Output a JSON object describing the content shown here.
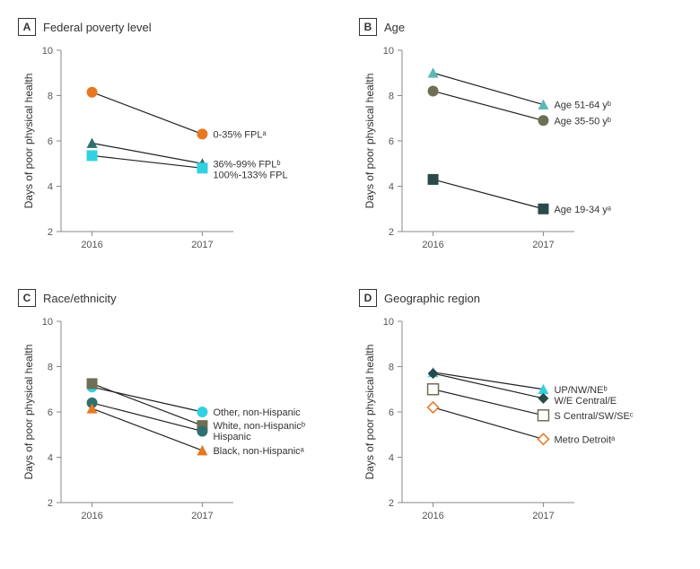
{
  "global": {
    "ylabel": "Days of poor physical health",
    "ylim": [
      2,
      10
    ],
    "yticks": [
      2,
      4,
      6,
      8,
      10
    ],
    "xcats": [
      "2016",
      "2017"
    ],
    "axis_color": "#888888",
    "label_color": "#333333",
    "tick_fontsize": 11,
    "title_fontsize": 13,
    "ylabel_fontsize": 12,
    "line_color": "#222222",
    "line_width": 1.2,
    "marker_size": 6,
    "background_color": "#ffffff"
  },
  "panels": [
    {
      "letter": "A",
      "title": "Federal poverty level",
      "series": [
        {
          "label": "0-35% FPLᵃ",
          "values": [
            8.15,
            6.3
          ],
          "color": "#e87722",
          "marker": "circle",
          "fill": true
        },
        {
          "label": "36%-99% FPLᵇ",
          "values": [
            5.9,
            5.0
          ],
          "color": "#2f6f6f",
          "marker": "triangle",
          "fill": true
        },
        {
          "label": "100%-133% FPL",
          "values": [
            5.35,
            4.8
          ],
          "color": "#33d1e0",
          "marker": "square",
          "fill": true
        }
      ]
    },
    {
      "letter": "B",
      "title": "Age",
      "series": [
        {
          "label": "Age 51-64 yᵇ",
          "values": [
            9.0,
            7.6
          ],
          "color": "#5cb8b8",
          "marker": "triangle",
          "fill": true
        },
        {
          "label": "Age 35-50 yᵇ",
          "values": [
            8.2,
            6.9
          ],
          "color": "#6f6f55",
          "marker": "circle",
          "fill": true
        },
        {
          "label": "Age 19-34 yᵃ",
          "values": [
            4.3,
            3.0
          ],
          "color": "#2a4a4a",
          "marker": "square",
          "fill": true
        }
      ]
    },
    {
      "letter": "C",
      "title": "Race/ethnicity",
      "series": [
        {
          "label": "Other, non-Hispanic",
          "values": [
            7.1,
            6.0
          ],
          "color": "#33d1e0",
          "marker": "circle",
          "fill": true
        },
        {
          "label": "White, non-Hispanicᵇ",
          "values": [
            7.25,
            5.4
          ],
          "color": "#6f6f55",
          "marker": "square",
          "fill": true
        },
        {
          "label": "Hispanic",
          "values": [
            6.4,
            5.15
          ],
          "color": "#2f6f6f",
          "marker": "circle",
          "fill": true
        },
        {
          "label": "Black, non-Hispanicᵃ",
          "values": [
            6.15,
            4.3
          ],
          "color": "#e87722",
          "marker": "triangle",
          "fill": true
        }
      ]
    },
    {
      "letter": "D",
      "title": "Geographic region",
      "series": [
        {
          "label": "UP/NW/NEᵇ",
          "values": [
            7.75,
            7.0
          ],
          "color": "#33d1e0",
          "marker": "triangle",
          "fill": true
        },
        {
          "label": "W/E Central/E",
          "values": [
            7.7,
            6.6
          ],
          "color": "#2a4a4a",
          "marker": "diamond",
          "fill": true
        },
        {
          "label": "S Central/SW/SEᶜ",
          "values": [
            7.0,
            5.85
          ],
          "color": "#6f6f55",
          "marker": "square",
          "fill": false
        },
        {
          "label": "Metro Detroitᵃ",
          "values": [
            6.2,
            4.8
          ],
          "color": "#e87722",
          "marker": "diamond",
          "fill": false
        }
      ]
    }
  ]
}
